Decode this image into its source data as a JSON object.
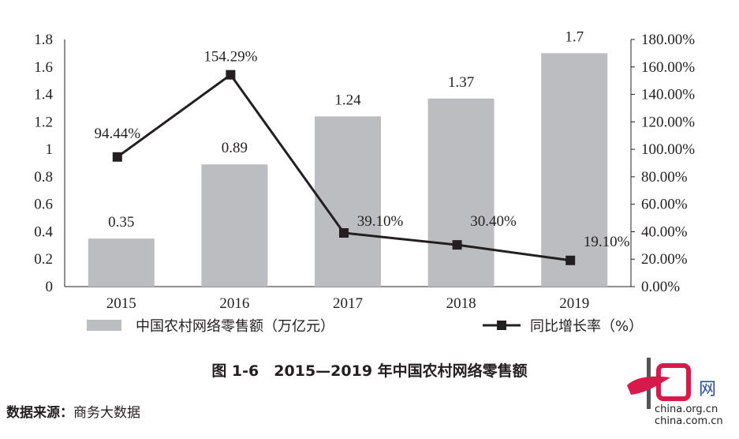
{
  "chart_data": {
    "type": "bar+line",
    "categories": [
      "2015",
      "2016",
      "2017",
      "2018",
      "2019"
    ],
    "series": [
      {
        "name": "中国农村网络零售额（万亿元）",
        "type": "bar",
        "axis": "left",
        "values": [
          0.35,
          0.89,
          1.24,
          1.37,
          1.7
        ],
        "labels": [
          "0.35",
          "0.89",
          "1.24",
          "1.37",
          "1.7"
        ],
        "color": "#bcbdc0"
      },
      {
        "name": "同比增长率（%）",
        "type": "line",
        "axis": "right",
        "values": [
          94.44,
          154.29,
          39.1,
          30.4,
          19.1
        ],
        "labels": [
          "94.44%",
          "154.29%",
          "39.10%",
          "30.40%",
          "19.10%"
        ],
        "color": "#231f20"
      }
    ],
    "left_axis": {
      "ylim": [
        0,
        1.8
      ],
      "ticks": [
        "0",
        "0.2",
        "0.4",
        "0.6",
        "0.8",
        "1",
        "1.2",
        "1.4",
        "1.6",
        "1.8"
      ]
    },
    "right_axis": {
      "ylim": [
        0,
        180
      ],
      "ticks": [
        "0.00%",
        "20.00%",
        "40.00%",
        "60.00%",
        "80.00%",
        "100.00%",
        "120.00%",
        "140.00%",
        "160.00%",
        "180.00%"
      ]
    },
    "legend": "bottom",
    "grid": false,
    "title": "图 1-6　2015—2019 年中国农村网络零售额"
  },
  "caption": {
    "prefix": "图 1-6",
    "title": "2015—2019 年中国农村网络零售额"
  },
  "source": {
    "label": "数据来源：",
    "value": "商务大数据"
  },
  "logo": {
    "text": "中国网",
    "sub1": "china.org.cn",
    "sub2": "china.com.cn"
  }
}
